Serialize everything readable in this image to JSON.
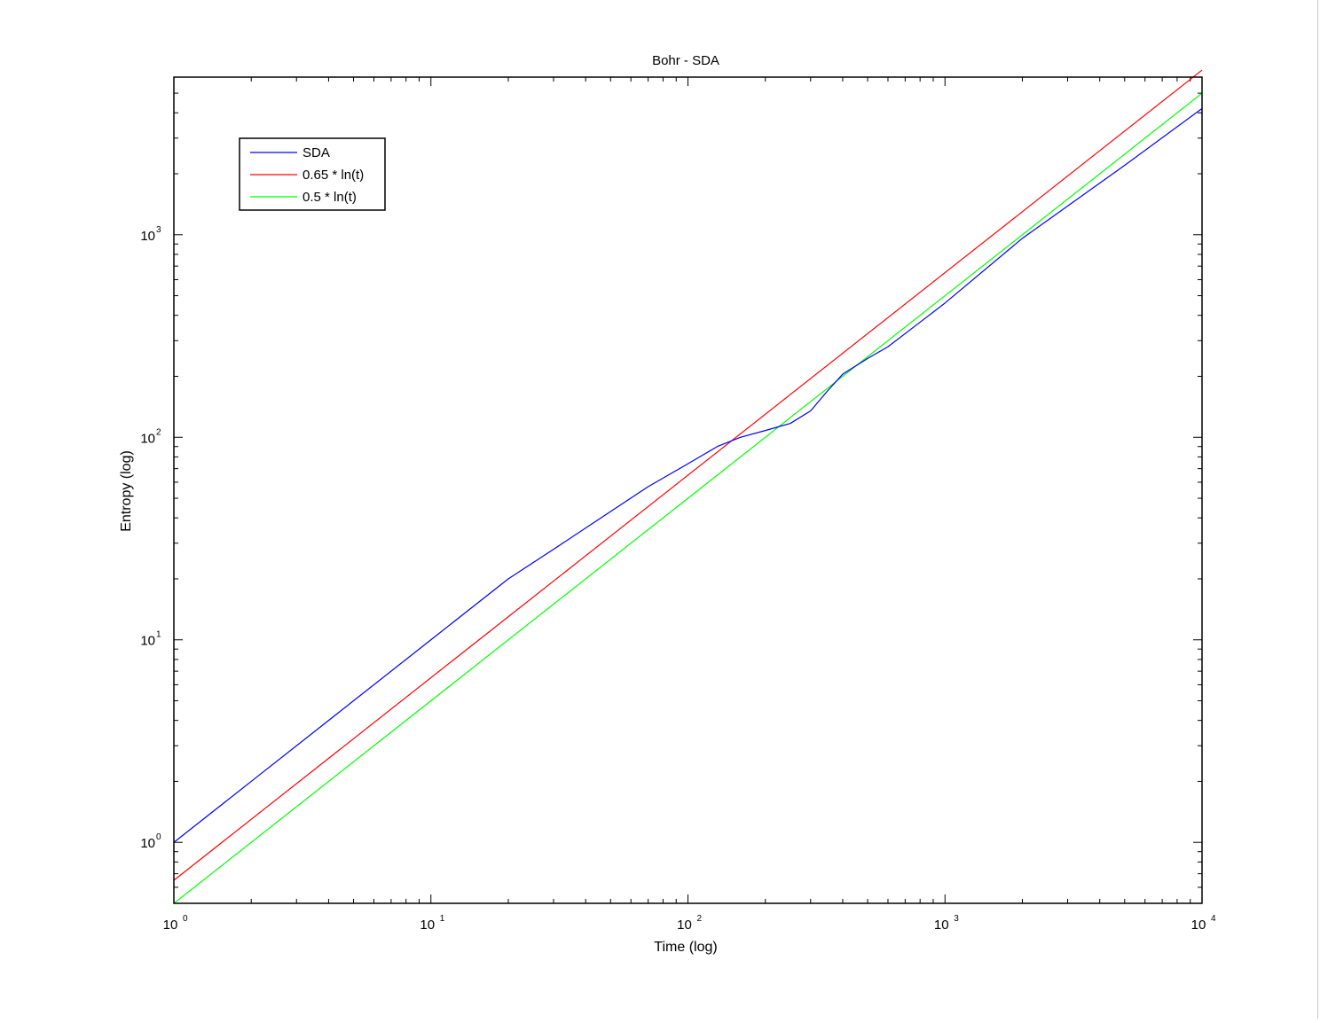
{
  "chart_data": {
    "type": "line",
    "title": "Bohr - SDA",
    "xlabel": "Time (log)",
    "ylabel": "Entropy (log)",
    "xscale": "log",
    "yscale": "log",
    "xlim": [
      1,
      10000
    ],
    "ylim": [
      0.5,
      6000
    ],
    "grid": false,
    "legend_position": "top-left",
    "xticks": [
      {
        "value": 1,
        "base": "10",
        "exp": "0"
      },
      {
        "value": 10,
        "base": "10",
        "exp": "1"
      },
      {
        "value": 100,
        "base": "10",
        "exp": "2"
      },
      {
        "value": 1000,
        "base": "10",
        "exp": "3"
      },
      {
        "value": 10000,
        "base": "10",
        "exp": "4"
      }
    ],
    "yticks": [
      {
        "value": 1,
        "base": "10",
        "exp": "0"
      },
      {
        "value": 10,
        "base": "10",
        "exp": "1"
      },
      {
        "value": 100,
        "base": "10",
        "exp": "2"
      },
      {
        "value": 1000,
        "base": "10",
        "exp": "3"
      }
    ],
    "series": [
      {
        "name": "SDA",
        "color": "#0000ff",
        "x": [
          1,
          2,
          5,
          10,
          20,
          30,
          50,
          70,
          100,
          130,
          160,
          200,
          250,
          300,
          350,
          400,
          500,
          600,
          800,
          1000,
          2000,
          5000,
          10000
        ],
        "y": [
          1.0,
          2.0,
          5.0,
          10.0,
          20.0,
          28.0,
          43.0,
          57.0,
          74.0,
          90.0,
          100.0,
          108.0,
          117.0,
          135.0,
          170.0,
          205.0,
          245.0,
          280.0,
          370.0,
          460.0,
          960.0,
          2200.0,
          4200.0
        ]
      },
      {
        "name": "0.65 * ln(t)",
        "color": "#ff0000",
        "x": [
          1,
          10000
        ],
        "y": [
          0.65,
          6500
        ]
      },
      {
        "name": "0.5 * ln(t)",
        "color": "#00ff00",
        "x": [
          1,
          10000
        ],
        "y": [
          0.5,
          5000
        ]
      }
    ]
  }
}
